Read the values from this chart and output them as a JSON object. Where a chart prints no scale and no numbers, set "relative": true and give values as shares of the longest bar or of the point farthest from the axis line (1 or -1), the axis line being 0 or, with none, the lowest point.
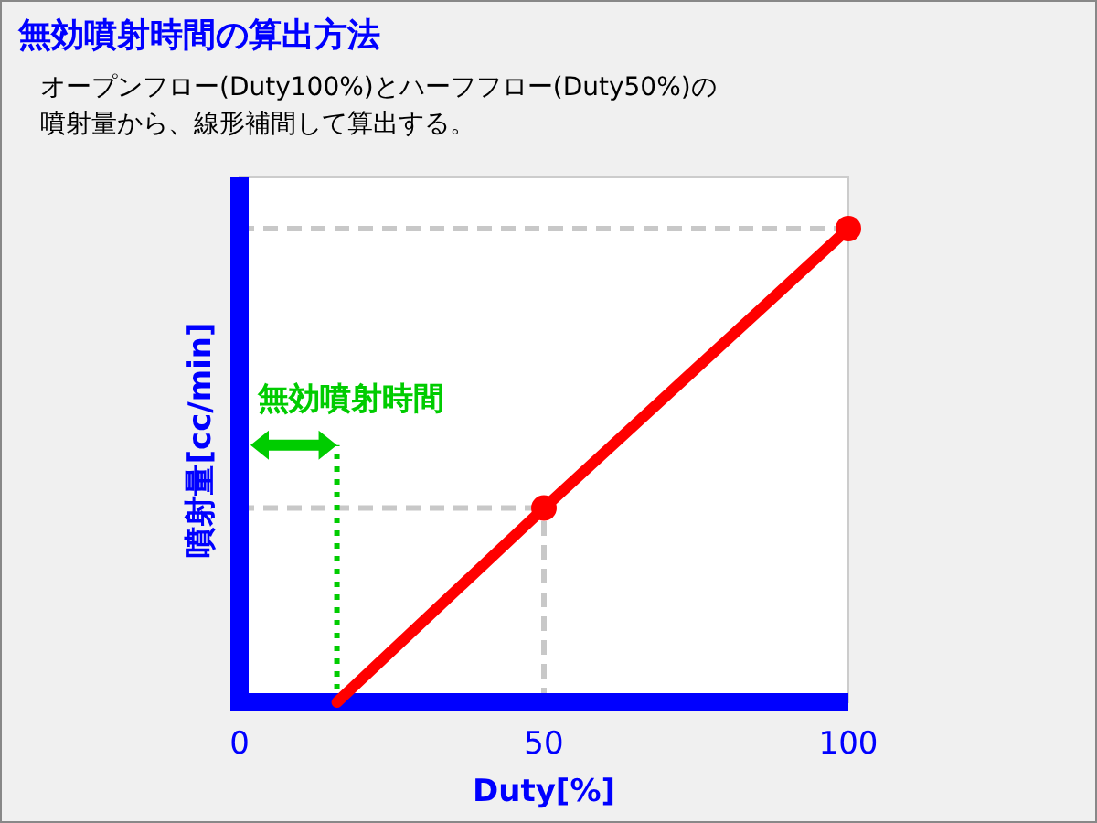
{
  "chart_data": {
    "type": "line",
    "title": "無効噴射時間の算出方法",
    "subtitle": "オープンフロー(Duty100%)とハーフフロー(Duty50%)の噴射量から、線形補間して算出する。",
    "xlabel": "Duty[%]",
    "ylabel": "噴射量[cc/min]",
    "relative": true,
    "xlim": [
      0,
      100
    ],
    "xticks": [
      0,
      50,
      100
    ],
    "series": [
      {
        "color": "#ff0000",
        "x": [
          16,
          50,
          100
        ],
        "values": [
          0,
          0.41,
          1
        ],
        "marker": "none"
      },
      {
        "type": "scatter",
        "color": "#ff0000",
        "x": [
          50,
          100
        ],
        "values": [
          0.41,
          1
        ]
      }
    ],
    "ref_lines": [
      {
        "axis": "y",
        "value": 1,
        "color": "#c8c8c8",
        "line_style": "dashed"
      },
      {
        "axis": "y",
        "value": 0.41,
        "color": "#c8c8c8",
        "line_style": "dashed"
      },
      {
        "axis": "x",
        "value": 50,
        "color": "#c8c8c8",
        "line_style": "dashed"
      },
      {
        "axis": "x",
        "value": 16,
        "label": "無効噴射時間",
        "color": "#00cc00",
        "line_style": "dotted"
      }
    ]
  }
}
